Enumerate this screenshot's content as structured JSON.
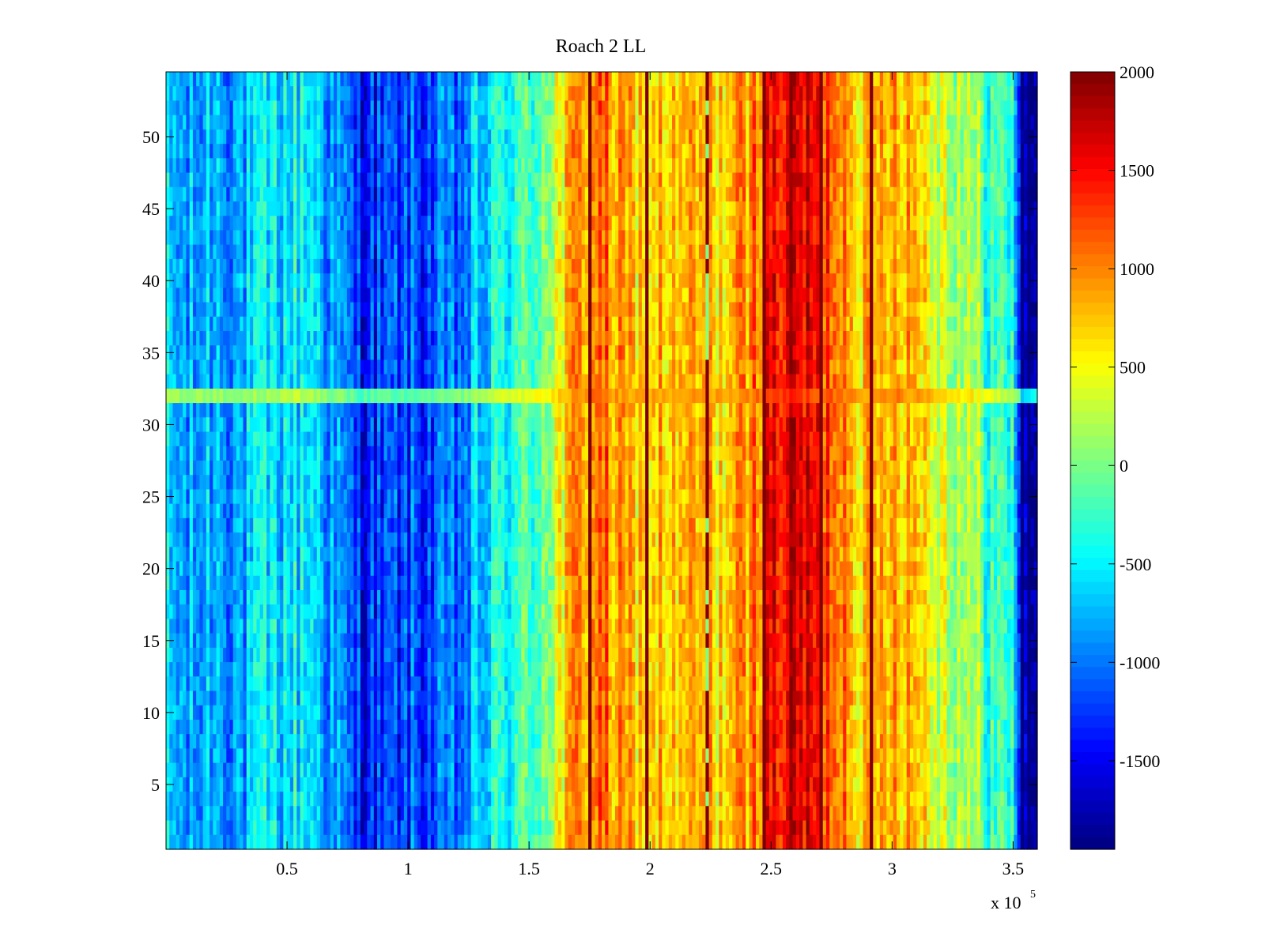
{
  "chart_data": {
    "type": "heatmap",
    "title": "Roach 2 LL",
    "xlabel": "",
    "ylabel": "",
    "x_tick_labels": [
      "0.5",
      "1",
      "1.5",
      "2",
      "2.5",
      "3",
      "3.5"
    ],
    "x_tick_values": [
      50000,
      100000,
      150000,
      200000,
      250000,
      300000,
      350000
    ],
    "x_exponent_label": "x 10",
    "x_exponent_power": "5",
    "xlim": [
      0,
      360000
    ],
    "y_tick_labels": [
      "5",
      "10",
      "15",
      "20",
      "25",
      "30",
      "35",
      "40",
      "45",
      "50"
    ],
    "y_tick_values": [
      5,
      10,
      15,
      20,
      25,
      30,
      35,
      40,
      45,
      50
    ],
    "ylim": [
      0.5,
      54.5
    ],
    "rows": 54,
    "colorbar": {
      "tick_labels": [
        "2000",
        "1500",
        "1000",
        "500",
        "0",
        "-500",
        "-1000",
        "-1500"
      ],
      "tick_values": [
        2000,
        1500,
        1000,
        500,
        0,
        -500,
        -1000,
        -1500
      ],
      "clim": [
        -1950,
        2000
      ],
      "colormap": "jet"
    },
    "column_profile": {
      "x": [
        0,
        10000,
        20000,
        30000,
        40000,
        50000,
        60000,
        70000,
        80000,
        90000,
        100000,
        110000,
        120000,
        130000,
        140000,
        150000,
        160000,
        170000,
        180000,
        190000,
        200000,
        210000,
        220000,
        230000,
        240000,
        250000,
        260000,
        270000,
        280000,
        290000,
        300000,
        310000,
        320000,
        330000,
        340000,
        350000,
        355000,
        360000
      ],
      "mean_value": [
        -700,
        -900,
        -700,
        -850,
        -650,
        -550,
        -500,
        -950,
        -1300,
        -1300,
        -1200,
        -1200,
        -1100,
        -700,
        -400,
        -250,
        300,
        900,
        1100,
        700,
        800,
        650,
        750,
        700,
        850,
        1450,
        1700,
        1400,
        1100,
        650,
        1000,
        800,
        400,
        200,
        -200,
        -400,
        -1900,
        -1900
      ]
    },
    "dark_stripes_x": [
      175000,
      198000,
      223000,
      247000,
      270000,
      292000,
      354000
    ],
    "band_row": 32,
    "grid": false
  }
}
